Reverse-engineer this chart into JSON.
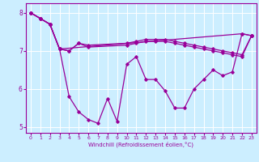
{
  "xlabel": "Windchill (Refroidissement éolien,°C)",
  "bg_color": "#cceeff",
  "line_color": "#990099",
  "grid_color": "#ffffff",
  "xlim": [
    -0.5,
    23.5
  ],
  "ylim": [
    4.85,
    8.25
  ],
  "yticks": [
    5,
    6,
    7,
    8
  ],
  "xticks": [
    0,
    1,
    2,
    3,
    4,
    5,
    6,
    7,
    8,
    9,
    10,
    11,
    12,
    13,
    14,
    15,
    16,
    17,
    18,
    19,
    20,
    21,
    22,
    23
  ],
  "series1_x": [
    0,
    1,
    2,
    3,
    4,
    5,
    6,
    7,
    8,
    9,
    10,
    11,
    12,
    13,
    14,
    15,
    16,
    17,
    18,
    19,
    20,
    21,
    22,
    23
  ],
  "series1_y": [
    8.0,
    7.85,
    7.7,
    7.05,
    5.8,
    5.4,
    5.2,
    5.1,
    5.75,
    5.15,
    6.65,
    6.85,
    6.25,
    6.25,
    5.95,
    5.5,
    5.5,
    6.0,
    6.25,
    6.5,
    6.35,
    6.45,
    7.45,
    7.4
  ],
  "series2_x": [
    0,
    1,
    2,
    3,
    4,
    5,
    6,
    10,
    11,
    12,
    13,
    14,
    15,
    16,
    17,
    18,
    19,
    20,
    21,
    22,
    23
  ],
  "series2_y": [
    8.0,
    7.85,
    7.7,
    7.05,
    7.0,
    7.2,
    7.1,
    7.15,
    7.2,
    7.25,
    7.25,
    7.25,
    7.2,
    7.15,
    7.1,
    7.05,
    7.0,
    6.95,
    6.9,
    6.85,
    7.4
  ],
  "series3_x": [
    0,
    1,
    2,
    3,
    4,
    5,
    6,
    10,
    11,
    12,
    13,
    14,
    15,
    16,
    17,
    18,
    19,
    20,
    21,
    22,
    23
  ],
  "series3_y": [
    8.0,
    7.85,
    7.7,
    7.05,
    7.0,
    7.2,
    7.15,
    7.2,
    7.25,
    7.3,
    7.3,
    7.3,
    7.25,
    7.2,
    7.15,
    7.1,
    7.05,
    7.0,
    6.95,
    6.9,
    7.4
  ],
  "series4_x": [
    0,
    1,
    2,
    3,
    22,
    23
  ],
  "series4_y": [
    8.0,
    7.85,
    7.7,
    7.05,
    7.45,
    7.4
  ]
}
